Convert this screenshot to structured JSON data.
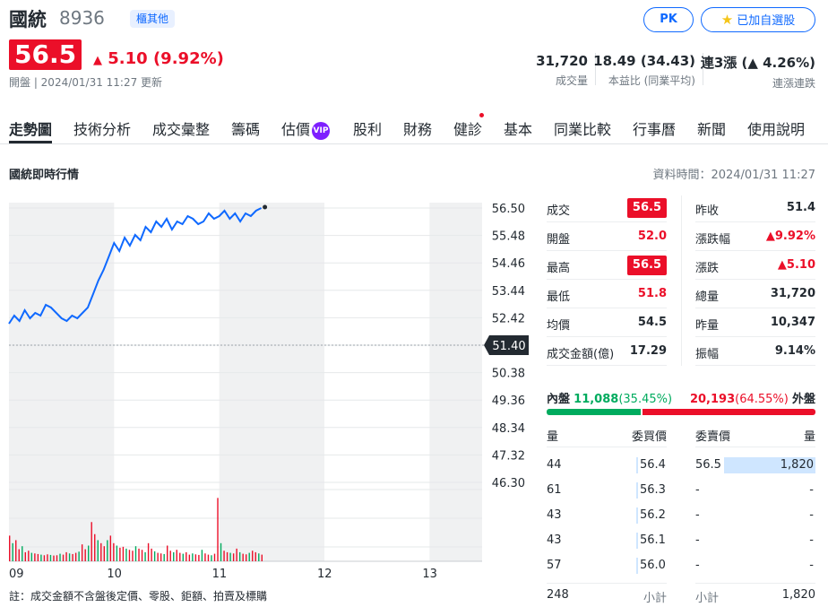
{
  "header": {
    "name": "國統",
    "code": "8936",
    "market": "櫃其他",
    "pk_label": "PK",
    "watch_label": "已加自選股",
    "price": "56.5",
    "change": "5.10 (9.92%)",
    "update": "開盤 | 2024/01/31 11:27 更新"
  },
  "stats": [
    {
      "value": "31,720",
      "label": "成交量"
    },
    {
      "value": "18.49 (34.43)",
      "label": "本益比 (同業平均)"
    },
    {
      "value": "連3漲 (▲ 4.26%)",
      "label": "連漲連跌"
    }
  ],
  "tabs": [
    "走勢圖",
    "技術分析",
    "成交彙整",
    "籌碼",
    "估價",
    "股利",
    "財務",
    "健診",
    "基本",
    "同業比較",
    "行事曆",
    "新聞",
    "使用說明"
  ],
  "vip_label": "VIP",
  "section_title": "國統即時行情",
  "data_time": "資料時間：2024/01/31 11:27",
  "note": "註：成交金額不含盤後定價、零股、鉅額、拍賣及標購",
  "quote_left": [
    {
      "label": "成交",
      "value": "56.5",
      "style": "boxed"
    },
    {
      "label": "開盤",
      "value": "52.0",
      "style": "up"
    },
    {
      "label": "最高",
      "value": "56.5",
      "style": "boxed"
    },
    {
      "label": "最低",
      "value": "51.8",
      "style": "up"
    },
    {
      "label": "均價",
      "value": "54.5",
      "style": "plain"
    },
    {
      "label": "成交金額(億)",
      "value": "17.29",
      "style": "plain"
    }
  ],
  "quote_right": [
    {
      "label": "昨收",
      "value": "51.4",
      "style": "plain"
    },
    {
      "label": "漲跌幅",
      "value": "▲9.92%",
      "style": "up"
    },
    {
      "label": "漲跌",
      "value": "▲5.10",
      "style": "up"
    },
    {
      "label": "總量",
      "value": "31,720",
      "style": "plain"
    },
    {
      "label": "昨量",
      "value": "10,347",
      "style": "plain"
    },
    {
      "label": "振幅",
      "value": "9.14%",
      "style": "plain"
    }
  ],
  "inout": {
    "in_label": "內盤",
    "in_value": "11,088",
    "in_pct": "(35.45%)",
    "out_value": "20,193",
    "out_pct": "(64.55%)",
    "out_label": "外盤",
    "in_fraction": 0.3545
  },
  "orderbook": {
    "headers": [
      "量",
      "委買價",
      "委賣價",
      "量"
    ],
    "bids": [
      {
        "vol": "44",
        "price": "56.4"
      },
      {
        "vol": "61",
        "price": "56.3"
      },
      {
        "vol": "43",
        "price": "56.2"
      },
      {
        "vol": "43",
        "price": "56.1"
      },
      {
        "vol": "57",
        "price": "56.0"
      }
    ],
    "asks": [
      {
        "price": "56.5",
        "vol": "1,820"
      },
      {
        "price": "-",
        "vol": "-"
      },
      {
        "price": "-",
        "vol": "-"
      },
      {
        "price": "-",
        "vol": "-"
      },
      {
        "price": "-",
        "vol": "-"
      }
    ],
    "bid_total": "248",
    "bid_total_label": "小計",
    "ask_total_label": "小計",
    "ask_total": "1,820"
  },
  "chart_data": {
    "type": "line",
    "y_ticks": [
      "56.50",
      "55.48",
      "54.46",
      "53.44",
      "52.42",
      "51.40",
      "50.38",
      "49.36",
      "48.34",
      "47.32",
      "46.30"
    ],
    "x_ticks": [
      "09",
      "10",
      "11",
      "12",
      "13"
    ],
    "reference_price": 51.4,
    "ylim": [
      46.3,
      56.5
    ],
    "price_series": [
      [
        9.0,
        52.2
      ],
      [
        9.05,
        52.5
      ],
      [
        9.1,
        52.3
      ],
      [
        9.15,
        52.7
      ],
      [
        9.2,
        52.4
      ],
      [
        9.25,
        52.6
      ],
      [
        9.3,
        52.5
      ],
      [
        9.35,
        52.9
      ],
      [
        9.4,
        52.8
      ],
      [
        9.45,
        52.6
      ],
      [
        9.5,
        52.4
      ],
      [
        9.55,
        52.3
      ],
      [
        9.6,
        52.5
      ],
      [
        9.65,
        52.4
      ],
      [
        9.7,
        52.6
      ],
      [
        9.75,
        52.8
      ],
      [
        9.8,
        53.3
      ],
      [
        9.85,
        53.8
      ],
      [
        9.9,
        54.2
      ],
      [
        9.95,
        54.7
      ],
      [
        10.0,
        55.2
      ],
      [
        10.05,
        54.9
      ],
      [
        10.1,
        55.4
      ],
      [
        10.15,
        55.1
      ],
      [
        10.2,
        55.5
      ],
      [
        10.25,
        55.3
      ],
      [
        10.3,
        55.8
      ],
      [
        10.35,
        55.6
      ],
      [
        10.4,
        56.0
      ],
      [
        10.45,
        55.8
      ],
      [
        10.5,
        56.1
      ],
      [
        10.55,
        55.7
      ],
      [
        10.6,
        56.0
      ],
      [
        10.65,
        55.9
      ],
      [
        10.7,
        56.2
      ],
      [
        10.75,
        56.1
      ],
      [
        10.8,
        55.9
      ],
      [
        10.85,
        56.0
      ],
      [
        10.9,
        56.3
      ],
      [
        10.95,
        56.1
      ],
      [
        11.0,
        56.2
      ],
      [
        11.05,
        56.4
      ],
      [
        11.1,
        56.1
      ],
      [
        11.15,
        56.3
      ],
      [
        11.2,
        56.0
      ],
      [
        11.25,
        56.3
      ],
      [
        11.3,
        56.2
      ],
      [
        11.35,
        56.4
      ],
      [
        11.4,
        56.5
      ]
    ],
    "volume_series": [
      [
        9.0,
        850
      ],
      [
        9.03,
        600
      ],
      [
        9.06,
        700
      ],
      [
        9.09,
        400
      ],
      [
        9.12,
        500
      ],
      [
        9.15,
        300
      ],
      [
        9.18,
        350
      ],
      [
        9.21,
        280
      ],
      [
        9.24,
        260
      ],
      [
        9.27,
        240
      ],
      [
        9.3,
        220
      ],
      [
        9.33,
        200
      ],
      [
        9.36,
        230
      ],
      [
        9.39,
        210
      ],
      [
        9.42,
        190
      ],
      [
        9.45,
        200
      ],
      [
        9.48,
        250
      ],
      [
        9.51,
        220
      ],
      [
        9.54,
        300
      ],
      [
        9.57,
        260
      ],
      [
        9.6,
        240
      ],
      [
        9.63,
        280
      ],
      [
        9.66,
        320
      ],
      [
        9.69,
        560
      ],
      [
        9.72,
        400
      ],
      [
        9.75,
        520
      ],
      [
        9.78,
        1300
      ],
      [
        9.81,
        900
      ],
      [
        9.84,
        700
      ],
      [
        9.87,
        600
      ],
      [
        9.9,
        500
      ],
      [
        9.93,
        700
      ],
      [
        9.96,
        850
      ],
      [
        9.99,
        600
      ],
      [
        10.02,
        520
      ],
      [
        10.05,
        450
      ],
      [
        10.08,
        480
      ],
      [
        10.11,
        420
      ],
      [
        10.14,
        380
      ],
      [
        10.17,
        350
      ],
      [
        10.2,
        500
      ],
      [
        10.23,
        420
      ],
      [
        10.26,
        380
      ],
      [
        10.29,
        300
      ],
      [
        10.32,
        600
      ],
      [
        10.35,
        420
      ],
      [
        10.38,
        330
      ],
      [
        10.41,
        280
      ],
      [
        10.44,
        260
      ],
      [
        10.47,
        240
      ],
      [
        10.5,
        520
      ],
      [
        10.53,
        350
      ],
      [
        10.56,
        300
      ],
      [
        10.59,
        380
      ],
      [
        10.62,
        280
      ],
      [
        10.65,
        250
      ],
      [
        10.68,
        300
      ],
      [
        10.71,
        220
      ],
      [
        10.74,
        260
      ],
      [
        10.77,
        230
      ],
      [
        10.8,
        210
      ],
      [
        10.83,
        380
      ],
      [
        10.86,
        260
      ],
      [
        10.89,
        220
      ],
      [
        10.92,
        200
      ],
      [
        10.95,
        250
      ],
      [
        10.98,
        2100
      ],
      [
        11.01,
        600
      ],
      [
        11.04,
        350
      ],
      [
        11.07,
        300
      ],
      [
        11.1,
        280
      ],
      [
        11.13,
        260
      ],
      [
        11.16,
        420
      ],
      [
        11.19,
        300
      ],
      [
        11.22,
        250
      ],
      [
        11.25,
        230
      ],
      [
        11.28,
        280
      ],
      [
        11.31,
        350
      ],
      [
        11.34,
        300
      ],
      [
        11.37,
        260
      ],
      [
        11.4,
        220
      ]
    ]
  }
}
